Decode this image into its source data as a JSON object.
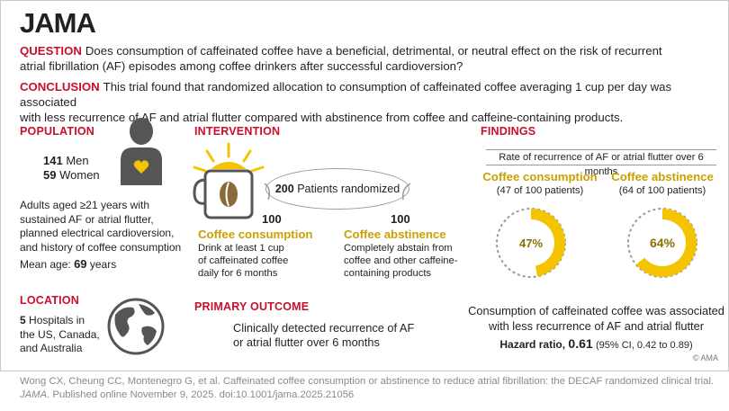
{
  "header": {
    "logo": "JAMA"
  },
  "question": {
    "label": "QUESTION",
    "line1": "Does consumption of caffeinated coffee have a beneficial, detrimental, or neutral effect on the risk of recurrent",
    "line2": "atrial fibrillation (AF) episodes among coffee drinkers after successful cardioversion?"
  },
  "conclusion": {
    "label": "CONCLUSION",
    "line1": "This trial found that randomized allocation to consumption of caffeinated coffee averaging 1 cup per day was associated",
    "line2": "with less recurrence of AF and atrial flutter compared with abstinence from coffee and caffeine-containing products."
  },
  "population": {
    "title": "POPULATION",
    "men_count": "141",
    "men_label": "Men",
    "women_count": "59",
    "women_label": "Women",
    "desc": [
      "Adults aged ≥21 years with",
      "sustained AF or atrial flutter,",
      "planned electrical cardioversion,",
      "and history of coffee consumption"
    ],
    "mean_age_label": "Mean age:",
    "mean_age_value": "69",
    "mean_age_unit": "years"
  },
  "location": {
    "title": "LOCATION",
    "count": "5",
    "lines": [
      "Hospitals in",
      "the US, Canada,",
      "and Australia"
    ]
  },
  "intervention": {
    "title": "INTERVENTION",
    "randomized_count": "200",
    "randomized_label": "Patients randomized",
    "arm1": {
      "count": "100",
      "name": "Coffee consumption",
      "desc": [
        "Drink at least 1 cup",
        "of caffeinated coffee",
        "daily for 6 months"
      ]
    },
    "arm2": {
      "count": "100",
      "name": "Coffee abstinence",
      "desc": [
        "Completely abstain from",
        "coffee and other caffeine-",
        "containing products"
      ]
    }
  },
  "primary_outcome": {
    "title": "PRIMARY OUTCOME",
    "lines": [
      "Clinically detected recurrence of AF",
      "or atrial flutter over 6 months"
    ]
  },
  "findings": {
    "title": "FINDINGS",
    "rate_label": "Rate of recurrence of AF or atrial flutter over 6 months",
    "group1": {
      "name": "Coffee consumption",
      "detail": "(47 of 100 patients)",
      "percent_label": "47%",
      "fraction": 0.47
    },
    "group2": {
      "name": "Coffee abstinence",
      "detail": "(64 of 100 patients)",
      "percent_label": "64%",
      "fraction": 0.64
    },
    "summary": [
      "Consumption of caffeinated coffee was associated",
      "with less recurrence of AF and atrial flutter"
    ],
    "hr_label": "Hazard ratio,",
    "hr_value": "0.61",
    "hr_ci": "(95% CI, 0.42 to 0.89)",
    "copyright": "© AMA"
  },
  "footer": {
    "line1": "Wong CX, Cheung CC, Montenegro G, et al. Caffeinated coffee consumption or abstinence to reduce atrial fibrillation: the DECAF randomized clinical trial.",
    "journal": "JAMA",
    "line2": ". Published online November 9, 2025. doi:10.1001/jama.2025.21056"
  },
  "colors": {
    "red": "#c8102e",
    "gold": "#f5c400",
    "gold_text": "#b08a00",
    "gray": "#555555"
  }
}
